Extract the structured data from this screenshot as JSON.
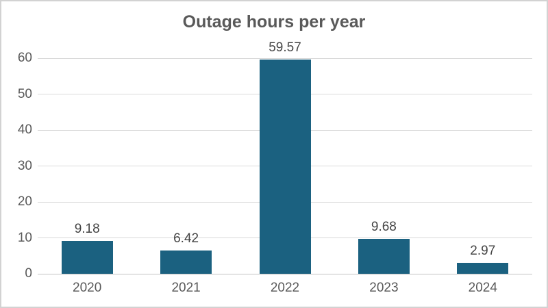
{
  "chart_data": {
    "type": "bar",
    "title": "Outage hours per year",
    "categories": [
      "2020",
      "2021",
      "2022",
      "2023",
      "2024"
    ],
    "values": [
      9.18,
      6.42,
      59.57,
      9.68,
      2.97
    ],
    "data_labels": [
      "9.18",
      "6.42",
      "59.57",
      "9.68",
      "2.97"
    ],
    "xlabel": "",
    "ylabel": "",
    "ylim": [
      0,
      60
    ],
    "yticks": [
      0,
      10,
      20,
      30,
      40,
      50,
      60
    ],
    "grid": "horizontal",
    "legend": "none",
    "colors": {
      "bar": "#1b6180",
      "gridline": "#d9d9d9",
      "axis_line": "#c3c3c3",
      "title_text": "#595959",
      "axis_text": "#595959",
      "data_label_text": "#444444",
      "frame_border": "#d2d2d2",
      "background": "#ffffff"
    }
  }
}
